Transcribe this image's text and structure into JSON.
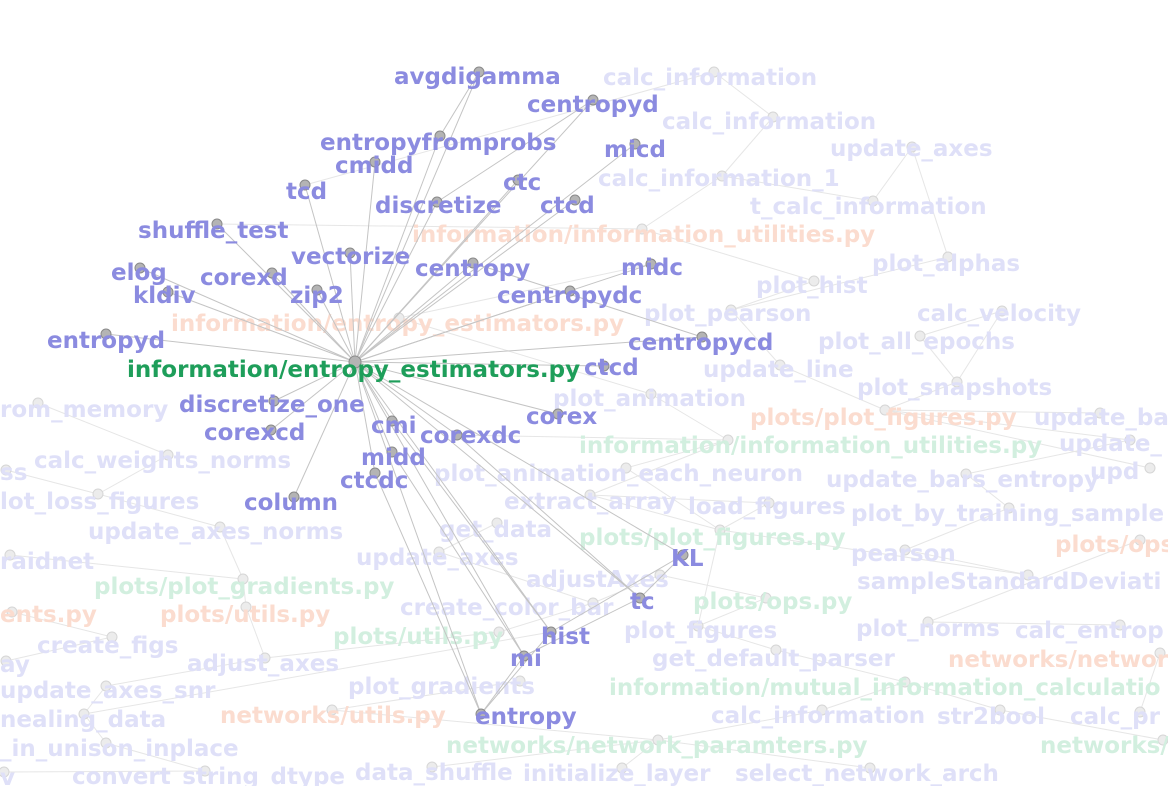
{
  "colors": {
    "function": "#8b8be0",
    "focus": "#1e9e5a",
    "faded_function": "#dfe0f8",
    "faded_module_green": "#d2efdf",
    "faded_module_orange": "#fbdccf"
  },
  "focus_node": {
    "label": "information/entropy_estimators.py"
  },
  "neighbors": [
    {
      "label": "avgdigamma"
    },
    {
      "label": "centropyd"
    },
    {
      "label": "entropyfromprobs"
    },
    {
      "label": "micd"
    },
    {
      "label": "cmidd"
    },
    {
      "label": "tcd"
    },
    {
      "label": "ctc"
    },
    {
      "label": "discretize"
    },
    {
      "label": "ctcd"
    },
    {
      "label": "shuffle_test"
    },
    {
      "label": "vectorize"
    },
    {
      "label": "elog"
    },
    {
      "label": "corexd"
    },
    {
      "label": "centropy"
    },
    {
      "label": "midc"
    },
    {
      "label": "kldiv"
    },
    {
      "label": "zip2"
    },
    {
      "label": "centropydc"
    },
    {
      "label": "entropyd"
    },
    {
      "label": "centropycd"
    },
    {
      "label": "ctcd"
    },
    {
      "label": "discretize_one"
    },
    {
      "label": "corex"
    },
    {
      "label": "corexcd"
    },
    {
      "label": "cmi"
    },
    {
      "label": "corexdc"
    },
    {
      "label": "midd"
    },
    {
      "label": "ctcdc"
    },
    {
      "label": "column"
    },
    {
      "label": "KL"
    },
    {
      "label": "tc"
    },
    {
      "label": "hist"
    },
    {
      "label": "mi"
    },
    {
      "label": "entropy"
    }
  ],
  "background_nodes": [
    {
      "label": "calc_information",
      "kind": "function"
    },
    {
      "label": "calc_information",
      "kind": "function"
    },
    {
      "label": "update_axes",
      "kind": "function"
    },
    {
      "label": "calc_information_1",
      "kind": "function"
    },
    {
      "label": "t_calc_information",
      "kind": "function"
    },
    {
      "label": "information/information_utilities.py",
      "kind": "module-orange"
    },
    {
      "label": "plot_alphas",
      "kind": "function"
    },
    {
      "label": "plot_hist",
      "kind": "function"
    },
    {
      "label": "information/entropy_estimators.py",
      "kind": "module-orange"
    },
    {
      "label": "plot_pearson",
      "kind": "function"
    },
    {
      "label": "calc_velocity",
      "kind": "function"
    },
    {
      "label": "plot_all_epochs",
      "kind": "function"
    },
    {
      "label": "update_line",
      "kind": "function"
    },
    {
      "label": "plot_snapshots",
      "kind": "function"
    },
    {
      "label": "rom_memory",
      "kind": "function"
    },
    {
      "label": "plot_animation",
      "kind": "function"
    },
    {
      "label": "plots/plot_figures.py",
      "kind": "module-orange"
    },
    {
      "label": "update_ba",
      "kind": "function"
    },
    {
      "label": "information/information_utilities.py",
      "kind": "module-green"
    },
    {
      "label": "update_",
      "kind": "function"
    },
    {
      "label": "ss",
      "kind": "function"
    },
    {
      "label": "calc_weights_norms",
      "kind": "function"
    },
    {
      "label": "plot_animation_each_neuron",
      "kind": "function"
    },
    {
      "label": "update_bars_entropy",
      "kind": "function"
    },
    {
      "label": "upd",
      "kind": "function"
    },
    {
      "label": "lot_loss_figures",
      "kind": "function"
    },
    {
      "label": "extract_array",
      "kind": "function"
    },
    {
      "label": "load_figures",
      "kind": "function"
    },
    {
      "label": "plot_by_training_sample",
      "kind": "function"
    },
    {
      "label": "update_axes_norms",
      "kind": "function"
    },
    {
      "label": "get_data",
      "kind": "function"
    },
    {
      "label": "plots/plot_figures.py",
      "kind": "module-green"
    },
    {
      "label": "raidnet",
      "kind": "function"
    },
    {
      "label": "update_axes",
      "kind": "function"
    },
    {
      "label": "pearson",
      "kind": "function"
    },
    {
      "label": "plots/ops",
      "kind": "module-orange"
    },
    {
      "label": "plots/plot_gradients.py",
      "kind": "module-green"
    },
    {
      "label": "adjustAxes",
      "kind": "function"
    },
    {
      "label": "sampleStandardDeviati",
      "kind": "function"
    },
    {
      "label": "ents.py",
      "kind": "module-orange"
    },
    {
      "label": "plots/utils.py",
      "kind": "module-orange"
    },
    {
      "label": "create_color_bar",
      "kind": "function"
    },
    {
      "label": "plots/ops.py",
      "kind": "module-green"
    },
    {
      "label": "plots/utils.py",
      "kind": "module-green"
    },
    {
      "label": "plot_figures",
      "kind": "function"
    },
    {
      "label": "plot_norms",
      "kind": "function"
    },
    {
      "label": "calc_entrop",
      "kind": "function"
    },
    {
      "label": "create_figs",
      "kind": "function"
    },
    {
      "label": "ay",
      "kind": "function"
    },
    {
      "label": "adjust_axes",
      "kind": "function"
    },
    {
      "label": "get_default_parser",
      "kind": "function"
    },
    {
      "label": "networks/networ",
      "kind": "module-orange"
    },
    {
      "label": "update_axes_snr",
      "kind": "function"
    },
    {
      "label": "plot_gradients",
      "kind": "function"
    },
    {
      "label": "information/mutual_information_calculatio",
      "kind": "module-green"
    },
    {
      "label": "nealing_data",
      "kind": "function"
    },
    {
      "label": "networks/utils.py",
      "kind": "module-orange"
    },
    {
      "label": "calc_information",
      "kind": "function"
    },
    {
      "label": "str2bool",
      "kind": "function"
    },
    {
      "label": "calc_pr",
      "kind": "function"
    },
    {
      "label": "_in_unison_inplace",
      "kind": "function"
    },
    {
      "label": "networks/network_paramters.py",
      "kind": "module-green"
    },
    {
      "label": "networks/",
      "kind": "module-green"
    },
    {
      "label": "v",
      "kind": "function"
    },
    {
      "label": "convert_string_dtype",
      "kind": "function"
    },
    {
      "label": "data_shuffle",
      "kind": "function"
    },
    {
      "label": "initialize_layer",
      "kind": "function"
    },
    {
      "label": "select_network_arch",
      "kind": "function"
    }
  ]
}
